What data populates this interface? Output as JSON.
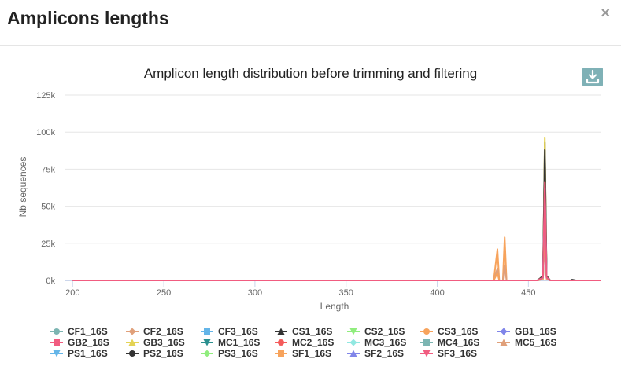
{
  "modal": {
    "title": "Amplicons lengths",
    "close_label": "×"
  },
  "chart_data": {
    "type": "line",
    "title": "Amplicon length distribution before trimming and filtering",
    "xlabel": "Length",
    "ylabel": "Nb sequences",
    "xlim": [
      196,
      490
    ],
    "ylim": [
      0,
      125000
    ],
    "x_ticks": [
      200,
      250,
      300,
      350,
      400,
      450
    ],
    "x_tick_labels": [
      "200",
      "250",
      "300",
      "350",
      "400",
      "450"
    ],
    "y_ticks": [
      0,
      25000,
      50000,
      75000,
      100000,
      125000
    ],
    "y_tick_labels": [
      "0k",
      "25k",
      "50k",
      "75k",
      "100k",
      "125k"
    ],
    "grid": "horizontal",
    "legend_position": "bottom",
    "series": [
      {
        "name": "CF1_16S",
        "color": "#7cb5b2",
        "marker": "circle",
        "points": [
          [
            200,
            0
          ],
          [
            455,
            0
          ],
          [
            458,
            1500
          ],
          [
            459,
            42000
          ],
          [
            460,
            2000
          ],
          [
            462,
            0
          ],
          [
            490,
            0
          ]
        ]
      },
      {
        "name": "CF2_16S",
        "color": "#e0a07a",
        "marker": "diamond",
        "points": [
          [
            200,
            0
          ],
          [
            455,
            0
          ],
          [
            458,
            1000
          ],
          [
            459,
            38000
          ],
          [
            460,
            1500
          ],
          [
            462,
            0
          ],
          [
            490,
            0
          ]
        ]
      },
      {
        "name": "CF3_16S",
        "color": "#64b5e8",
        "marker": "square",
        "points": [
          [
            200,
            0
          ],
          [
            455,
            0
          ],
          [
            458,
            1200
          ],
          [
            459,
            45000
          ],
          [
            460,
            1800
          ],
          [
            462,
            0
          ],
          [
            490,
            0
          ]
        ]
      },
      {
        "name": "CS1_16S",
        "color": "#333333",
        "marker": "triangle",
        "points": [
          [
            200,
            0
          ],
          [
            455,
            0
          ],
          [
            458,
            3000
          ],
          [
            459,
            93000
          ],
          [
            460,
            3000
          ],
          [
            462,
            0
          ],
          [
            473,
            0
          ],
          [
            474,
            500
          ],
          [
            476,
            0
          ],
          [
            490,
            0
          ]
        ]
      },
      {
        "name": "CS2_16S",
        "color": "#90ed7d",
        "marker": "triangle-down",
        "points": [
          [
            200,
            0
          ],
          [
            455,
            0
          ],
          [
            458,
            1200
          ],
          [
            459,
            40000
          ],
          [
            460,
            1500
          ],
          [
            462,
            0
          ],
          [
            490,
            0
          ]
        ]
      },
      {
        "name": "CS3_16S",
        "color": "#f7a35c",
        "marker": "circle",
        "points": [
          [
            200,
            0
          ],
          [
            431,
            0
          ],
          [
            433,
            21000
          ],
          [
            434,
            0
          ],
          [
            436,
            0
          ],
          [
            437,
            29000
          ],
          [
            438,
            0
          ],
          [
            455,
            0
          ],
          [
            458,
            1000
          ],
          [
            459,
            35000
          ],
          [
            460,
            1000
          ],
          [
            462,
            0
          ],
          [
            490,
            0
          ]
        ]
      },
      {
        "name": "GB1_16S",
        "color": "#8085e9",
        "marker": "diamond",
        "points": [
          [
            200,
            0
          ],
          [
            455,
            0
          ],
          [
            458,
            2000
          ],
          [
            459,
            70000
          ],
          [
            460,
            2000
          ],
          [
            462,
            0
          ],
          [
            490,
            0
          ]
        ]
      },
      {
        "name": "GB2_16S",
        "color": "#f15c80",
        "marker": "square",
        "points": [
          [
            200,
            0
          ],
          [
            455,
            0
          ],
          [
            458,
            2000
          ],
          [
            459,
            65000
          ],
          [
            460,
            2000
          ],
          [
            462,
            0
          ],
          [
            490,
            0
          ]
        ]
      },
      {
        "name": "GB3_16S",
        "color": "#e4d354",
        "marker": "triangle",
        "points": [
          [
            200,
            0
          ],
          [
            455,
            0
          ],
          [
            458,
            2500
          ],
          [
            459,
            96000
          ],
          [
            460,
            2500
          ],
          [
            462,
            0
          ],
          [
            490,
            0
          ]
        ]
      },
      {
        "name": "MC1_16S",
        "color": "#2b908f",
        "marker": "triangle-down",
        "points": [
          [
            200,
            0
          ],
          [
            455,
            0
          ],
          [
            458,
            2000
          ],
          [
            459,
            75000
          ],
          [
            460,
            2000
          ],
          [
            462,
            0
          ],
          [
            490,
            0
          ]
        ]
      },
      {
        "name": "MC2_16S",
        "color": "#f45b5b",
        "marker": "circle",
        "points": [
          [
            200,
            0
          ],
          [
            455,
            0
          ],
          [
            458,
            1500
          ],
          [
            459,
            55000
          ],
          [
            460,
            1500
          ],
          [
            462,
            0
          ],
          [
            490,
            0
          ]
        ]
      },
      {
        "name": "MC3_16S",
        "color": "#91e8e1",
        "marker": "diamond",
        "points": [
          [
            200,
            0
          ],
          [
            455,
            0
          ],
          [
            458,
            1200
          ],
          [
            459,
            45000
          ],
          [
            460,
            1200
          ],
          [
            462,
            0
          ],
          [
            490,
            0
          ]
        ]
      },
      {
        "name": "MC4_16S",
        "color": "#7cb5b2",
        "marker": "square",
        "points": [
          [
            200,
            0
          ],
          [
            455,
            0
          ],
          [
            458,
            1500
          ],
          [
            459,
            50000
          ],
          [
            460,
            1500
          ],
          [
            462,
            0
          ],
          [
            490,
            0
          ]
        ]
      },
      {
        "name": "MC5_16S",
        "color": "#e0a07a",
        "marker": "triangle",
        "points": [
          [
            200,
            0
          ],
          [
            431,
            0
          ],
          [
            433,
            8000
          ],
          [
            434,
            0
          ],
          [
            436,
            0
          ],
          [
            437,
            10000
          ],
          [
            438,
            0
          ],
          [
            455,
            0
          ],
          [
            458,
            1200
          ],
          [
            459,
            40000
          ],
          [
            460,
            1200
          ],
          [
            462,
            0
          ],
          [
            490,
            0
          ]
        ]
      },
      {
        "name": "PS1_16S",
        "color": "#64b5e8",
        "marker": "triangle-down",
        "points": [
          [
            200,
            0
          ],
          [
            455,
            0
          ],
          [
            458,
            1800
          ],
          [
            459,
            60000
          ],
          [
            460,
            1800
          ],
          [
            462,
            0
          ],
          [
            490,
            0
          ]
        ]
      },
      {
        "name": "PS2_16S",
        "color": "#333333",
        "marker": "circle",
        "points": [
          [
            200,
            0
          ],
          [
            455,
            0
          ],
          [
            458,
            2500
          ],
          [
            459,
            88000
          ],
          [
            460,
            2500
          ],
          [
            462,
            0
          ],
          [
            490,
            0
          ]
        ]
      },
      {
        "name": "PS3_16S",
        "color": "#90ed7d",
        "marker": "diamond",
        "points": [
          [
            200,
            0
          ],
          [
            455,
            0
          ],
          [
            458,
            1500
          ],
          [
            459,
            52000
          ],
          [
            460,
            1500
          ],
          [
            462,
            0
          ],
          [
            490,
            0
          ]
        ]
      },
      {
        "name": "SF1_16S",
        "color": "#f7a35c",
        "marker": "square",
        "points": [
          [
            200,
            0
          ],
          [
            431,
            0
          ],
          [
            433,
            5000
          ],
          [
            434,
            0
          ],
          [
            455,
            0
          ],
          [
            458,
            1000
          ],
          [
            459,
            36000
          ],
          [
            460,
            1000
          ],
          [
            462,
            0
          ],
          [
            490,
            0
          ]
        ]
      },
      {
        "name": "SF2_16S",
        "color": "#8085e9",
        "marker": "triangle",
        "points": [
          [
            200,
            0
          ],
          [
            455,
            0
          ],
          [
            458,
            1800
          ],
          [
            459,
            62000
          ],
          [
            460,
            1800
          ],
          [
            462,
            0
          ],
          [
            490,
            0
          ]
        ]
      },
      {
        "name": "SF3_16S",
        "color": "#f15c80",
        "marker": "triangle-down",
        "points": [
          [
            200,
            0
          ],
          [
            455,
            0
          ],
          [
            458,
            2000
          ],
          [
            459,
            66000
          ],
          [
            460,
            2000
          ],
          [
            462,
            0
          ],
          [
            490,
            0
          ]
        ]
      }
    ]
  }
}
